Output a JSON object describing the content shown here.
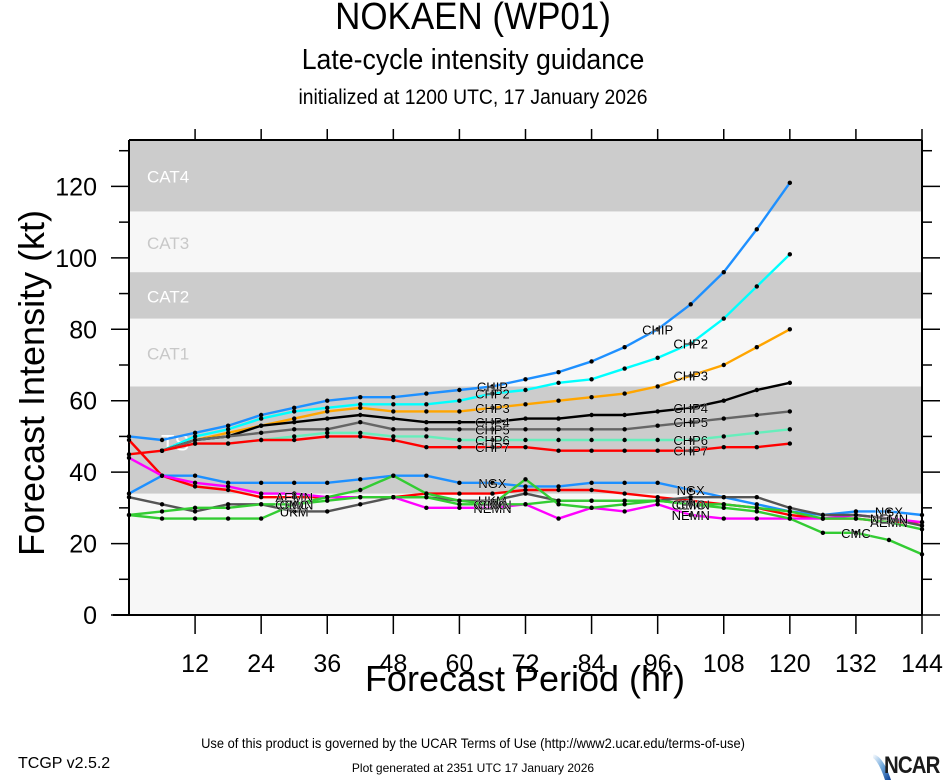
{
  "header": {
    "title": "NOKAEN (WP01)",
    "subtitle": "Late-cycle intensity guidance",
    "init": "initialized at 1200 UTC, 17 January 2026"
  },
  "footer": {
    "terms": "Use of this product is governed by the UCAR Terms of Use (http://www2.ucar.edu/terms-of-use)",
    "generated": "Plot generated at 2351 UTC   17 January 2026",
    "version": "TCGP v2.5.2",
    "logo": "NCAR"
  },
  "chart_data": {
    "type": "line",
    "title": "NOKAEN (WP01)",
    "subtitle": "Late-cycle intensity guidance",
    "xlabel": "Forecast Period (hr)",
    "ylabel": "Forecast Intensity (kt)",
    "xlim": [
      0,
      144
    ],
    "ylim": [
      0,
      133
    ],
    "xticks": [
      12,
      24,
      36,
      48,
      60,
      72,
      84,
      96,
      108,
      120,
      132,
      144
    ],
    "yticks": [
      0,
      20,
      40,
      60,
      80,
      100,
      120
    ],
    "grid": false,
    "bands": [
      {
        "label": "TS",
        "from": 34,
        "to": 64,
        "shade": "dark"
      },
      {
        "label": "CAT1",
        "from": 64,
        "to": 83,
        "shade": "light"
      },
      {
        "label": "CAT2",
        "from": 83,
        "to": 96,
        "shade": "dark"
      },
      {
        "label": "CAT3",
        "from": 96,
        "to": 113,
        "shade": "light"
      },
      {
        "label": "CAT4",
        "from": 113,
        "to": 133,
        "shade": "dark"
      }
    ],
    "colors": {
      "band_dark": "#cccccc",
      "band_light": "#f7f7f7"
    },
    "series": [
      {
        "name": "CHIP",
        "color": "#1e90ff",
        "label_at": [
          66,
          96
        ],
        "x": [
          0,
          6,
          12,
          18,
          24,
          30,
          36,
          42,
          48,
          54,
          60,
          66,
          72,
          78,
          84,
          90,
          96,
          102,
          108,
          114,
          120
        ],
        "y": [
          50,
          49,
          51,
          53,
          56,
          58,
          60,
          61,
          61,
          62,
          63,
          64,
          66,
          68,
          71,
          75,
          80,
          87,
          96,
          108,
          121
        ]
      },
      {
        "name": "CHP2",
        "color": "#00ffff",
        "label_at": [
          66,
          102
        ],
        "x": [
          6,
          12,
          18,
          24,
          30,
          36,
          42,
          48,
          54,
          60,
          66,
          72,
          78,
          84,
          90,
          96,
          102,
          108,
          114,
          120
        ],
        "y": [
          46,
          50,
          52,
          55,
          57,
          58,
          59,
          59,
          59,
          60,
          62,
          63,
          65,
          66,
          69,
          72,
          76,
          83,
          92,
          101
        ]
      },
      {
        "name": "CHP3",
        "color": "#ffa500",
        "label_at": [
          66,
          102
        ],
        "x": [
          6,
          12,
          18,
          24,
          30,
          36,
          42,
          48,
          54,
          60,
          66,
          72,
          78,
          84,
          90,
          96,
          102,
          108,
          114,
          120
        ],
        "y": [
          46,
          49,
          51,
          53,
          55,
          57,
          58,
          57,
          57,
          57,
          58,
          59,
          60,
          61,
          62,
          64,
          67,
          70,
          75,
          80
        ]
      },
      {
        "name": "CHP4",
        "color": "#000000",
        "label_at": [
          66,
          102
        ],
        "x": [
          6,
          12,
          18,
          24,
          30,
          36,
          42,
          48,
          54,
          60,
          66,
          72,
          78,
          84,
          90,
          96,
          102,
          108,
          114,
          120
        ],
        "y": [
          46,
          49,
          50,
          53,
          54,
          55,
          56,
          55,
          54,
          54,
          54,
          55,
          55,
          56,
          56,
          57,
          58,
          60,
          63,
          65
        ]
      },
      {
        "name": "CHP5",
        "color": "#666666",
        "label_at": [
          66,
          102
        ],
        "x": [
          6,
          12,
          18,
          24,
          30,
          36,
          42,
          48,
          54,
          60,
          66,
          72,
          78,
          84,
          90,
          96,
          102,
          108,
          114,
          120
        ],
        "y": [
          46,
          49,
          50,
          51,
          52,
          52,
          54,
          52,
          52,
          52,
          52,
          52,
          52,
          52,
          52,
          53,
          54,
          55,
          56,
          57
        ]
      },
      {
        "name": "CHP6",
        "color": "#66eebb",
        "label_at": [
          66,
          102
        ],
        "x": [
          6,
          12,
          18,
          24,
          30,
          36,
          42,
          48,
          54,
          60,
          66,
          72,
          78,
          84,
          90,
          96,
          102,
          108,
          114,
          120
        ],
        "y": [
          46,
          48,
          48,
          49,
          50,
          51,
          51,
          50,
          50,
          49,
          49,
          49,
          49,
          49,
          49,
          49,
          49,
          50,
          51,
          52
        ]
      },
      {
        "name": "CHP7",
        "color": "#ff0000",
        "label_at": [
          66,
          102
        ],
        "x": [
          0,
          6,
          12,
          18,
          24,
          30,
          36,
          42,
          48,
          54,
          60,
          66,
          72,
          78,
          84,
          90,
          96,
          102,
          108,
          114,
          120
        ],
        "y": [
          45,
          46,
          48,
          48,
          49,
          49,
          50,
          50,
          49,
          47,
          47,
          47,
          47,
          46,
          46,
          46,
          46,
          46,
          47,
          47,
          48
        ]
      },
      {
        "name": "NGX",
        "color": "#1e90ff",
        "label_at": [
          66,
          102,
          138
        ],
        "x": [
          0,
          6,
          12,
          18,
          24,
          30,
          36,
          42,
          48,
          54,
          60,
          66,
          72,
          78,
          84,
          90,
          96,
          102,
          108,
          114,
          120,
          126,
          132,
          138,
          144
        ],
        "y": [
          34,
          39,
          39,
          37,
          37,
          37,
          37,
          38,
          39,
          39,
          37,
          37,
          36,
          36,
          37,
          37,
          37,
          35,
          33,
          31,
          29,
          28,
          29,
          29,
          28
        ]
      },
      {
        "name": "AEMN",
        "color": "#ff0000",
        "label_at": [
          30,
          138
        ],
        "x": [
          0,
          6,
          12,
          18,
          24,
          30,
          36,
          42,
          48,
          54,
          60,
          66,
          72,
          78,
          84,
          90,
          96,
          102,
          108,
          114,
          120,
          126,
          132,
          138,
          144
        ],
        "y": [
          49,
          39,
          36,
          35,
          33,
          33,
          33,
          33,
          33,
          34,
          34,
          34,
          35,
          35,
          35,
          34,
          33,
          32,
          31,
          30,
          28,
          27,
          27,
          26,
          26
        ]
      },
      {
        "name": "NEMN",
        "color": "#ff00ff",
        "label_at": [
          66,
          102,
          138
        ],
        "x": [
          0,
          6,
          12,
          18,
          24,
          30,
          36,
          42,
          48,
          54,
          60,
          66,
          72,
          78,
          84,
          90,
          96,
          102,
          108,
          114,
          120,
          126,
          132,
          138,
          144
        ],
        "y": [
          44,
          39,
          37,
          36,
          34,
          34,
          33,
          33,
          33,
          30,
          30,
          30,
          31,
          27,
          30,
          29,
          31,
          28,
          27,
          27,
          27,
          27,
          28,
          27,
          26
        ]
      },
      {
        "name": "UKM",
        "color": "#555555",
        "label_at": [
          30,
          66
        ],
        "x": [
          0,
          6,
          12,
          18,
          24,
          30,
          36,
          42,
          48,
          54,
          60,
          66,
          72,
          78,
          84,
          90,
          96,
          102,
          108,
          114,
          120,
          126,
          132,
          138,
          144
        ],
        "y": [
          33,
          31,
          29,
          31,
          31,
          29,
          29,
          31,
          33,
          33,
          32,
          32,
          34,
          32,
          32,
          32,
          32,
          33,
          33,
          33,
          30,
          28,
          28,
          27,
          25
        ]
      },
      {
        "name": "CEMN",
        "color": "#33cc33",
        "label_at": [
          30,
          66,
          102
        ],
        "x": [
          0,
          6,
          12,
          18,
          24,
          30,
          36,
          42,
          48,
          54,
          60,
          66,
          72,
          78,
          84,
          90,
          96,
          102,
          108,
          114,
          120,
          126,
          132,
          138,
          144
        ],
        "y": [
          28,
          29,
          30,
          30,
          31,
          31,
          33,
          35,
          39,
          34,
          32,
          31,
          38,
          31,
          30,
          31,
          32,
          31,
          31,
          30,
          29,
          27,
          27,
          26,
          24
        ]
      },
      {
        "name": "CMC",
        "color": "#33cc33",
        "label_at": [
          30,
          66,
          102,
          132
        ],
        "x": [
          0,
          6,
          12,
          18,
          24,
          30,
          36,
          42,
          48,
          54,
          60,
          66,
          72,
          78,
          84,
          90,
          96,
          102,
          108,
          114,
          120,
          126,
          132,
          138,
          144
        ],
        "y": [
          28,
          27,
          27,
          27,
          27,
          31,
          32,
          33,
          33,
          33,
          31,
          31,
          31,
          32,
          32,
          32,
          32,
          31,
          30,
          29,
          27,
          23,
          23,
          21,
          17
        ]
      }
    ]
  }
}
